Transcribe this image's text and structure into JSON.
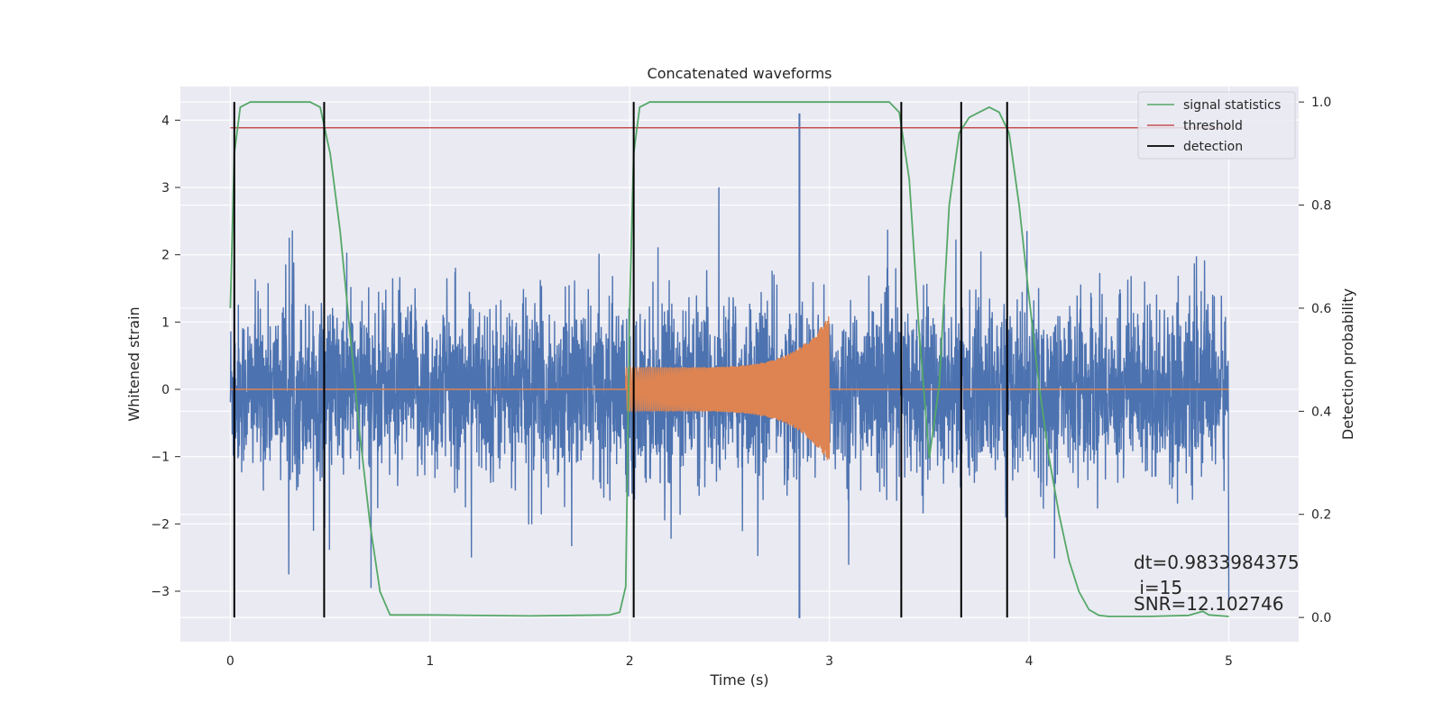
{
  "chart_data": {
    "type": "line",
    "title": "Concatenated waveforms",
    "xlabel": "Time (s)",
    "ylabel": "Whitened strain",
    "y2label": "Detection probability",
    "xlim": [
      -0.25,
      5.35
    ],
    "ylim": [
      -3.75,
      4.5
    ],
    "y2lim": [
      -0.047,
      1.03
    ],
    "xticks": [
      0,
      1,
      2,
      3,
      4,
      5
    ],
    "yticks": [
      -3,
      -2,
      -1,
      0,
      1,
      2,
      3,
      4
    ],
    "y2ticks": [
      0.0,
      0.2,
      0.4,
      0.6,
      0.8,
      1.0
    ],
    "xtick_labels": [
      "0",
      "1",
      "2",
      "3",
      "4",
      "5"
    ],
    "ytick_labels": [
      "−3",
      "−2",
      "−1",
      "0",
      "1",
      "2",
      "3",
      "4"
    ],
    "y2tick_labels": [
      "0.0",
      "0.2",
      "0.4",
      "0.6",
      "0.8",
      "1.0"
    ],
    "grid": true,
    "legend_position": "top-right",
    "series": [
      {
        "name": "",
        "kind": "whitened-noise",
        "axis": "left",
        "color": "#4c72b0",
        "x_range": [
          0,
          5
        ],
        "typical_range": [
          -1.5,
          1.5
        ],
        "extremes": [
          -3.4,
          4.1
        ]
      },
      {
        "name": "",
        "kind": "injected-chirp",
        "axis": "left",
        "color": "#dd8452",
        "x_range": [
          0,
          5
        ],
        "chirp_start": 1.98,
        "chirp_end": 3.0,
        "amplitude_start": 0.33,
        "amplitude_end": 1.1
      },
      {
        "name": "signal statistics",
        "axis": "right",
        "color": "#55a868",
        "x": [
          0.0,
          0.02,
          0.05,
          0.1,
          0.2,
          0.4,
          0.45,
          0.5,
          0.55,
          0.6,
          0.65,
          0.7,
          0.75,
          0.8,
          1.0,
          1.5,
          1.9,
          1.95,
          1.98,
          2.0,
          2.02,
          2.05,
          2.1,
          2.5,
          3.0,
          3.3,
          3.35,
          3.4,
          3.45,
          3.5,
          3.55,
          3.6,
          3.65,
          3.7,
          3.75,
          3.8,
          3.85,
          3.9,
          3.95,
          4.0,
          4.05,
          4.1,
          4.15,
          4.2,
          4.25,
          4.3,
          4.35,
          4.4,
          4.6,
          4.8,
          4.87,
          4.9,
          5.0
        ],
        "y": [
          0.6,
          0.9,
          0.99,
          1.0,
          1.0,
          1.0,
          0.99,
          0.9,
          0.75,
          0.55,
          0.35,
          0.18,
          0.05,
          0.005,
          0.005,
          0.003,
          0.005,
          0.01,
          0.06,
          0.6,
          0.9,
          0.99,
          1.0,
          1.0,
          1.0,
          1.0,
          0.98,
          0.85,
          0.55,
          0.31,
          0.45,
          0.8,
          0.94,
          0.97,
          0.98,
          0.99,
          0.98,
          0.94,
          0.8,
          0.62,
          0.45,
          0.31,
          0.2,
          0.11,
          0.05,
          0.015,
          0.004,
          0.002,
          0.002,
          0.004,
          0.012,
          0.005,
          0.002
        ]
      },
      {
        "name": "threshold",
        "axis": "right",
        "color": "#c44e52",
        "x": [
          0.0,
          5.0
        ],
        "y": [
          0.95,
          0.95
        ]
      },
      {
        "name": "detection",
        "axis": "right",
        "color": "#000000",
        "kind": "vertical-lines",
        "x": [
          0.02,
          0.47,
          2.02,
          3.36,
          3.66,
          3.89
        ],
        "ymin": 0.0,
        "ymax": 1.0
      }
    ],
    "annotations": [
      {
        "text": "dt=0.9833984375"
      },
      {
        "text": " i=15"
      },
      {
        "text": "SNR=12.102746"
      }
    ]
  }
}
